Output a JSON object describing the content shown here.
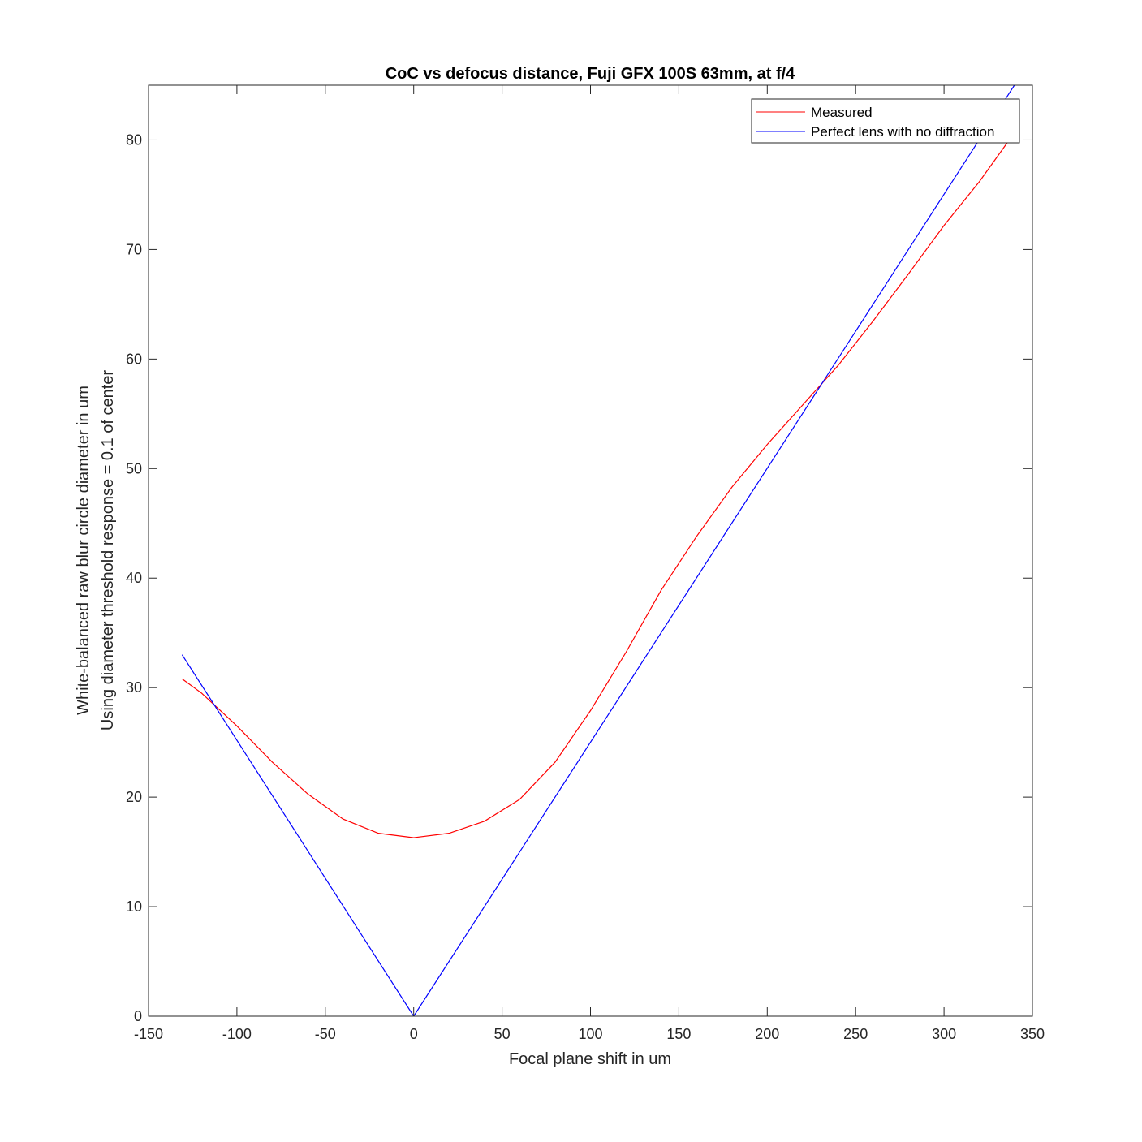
{
  "chart_data": {
    "type": "line",
    "title": "CoC vs defocus distance, Fuji GFX 100S 63mm, at f/4",
    "xlabel": "Focal plane shift in um",
    "ylabel": [
      "White-balanced raw blur circle diameter in um",
      "Using diameter threshold response = 0.1 of center"
    ],
    "xlim": [
      -150,
      350
    ],
    "ylim": [
      0,
      85
    ],
    "xticks": [
      -150,
      -100,
      -50,
      0,
      50,
      100,
      150,
      200,
      250,
      300,
      350
    ],
    "yticks": [
      0,
      10,
      20,
      30,
      40,
      50,
      60,
      70,
      80
    ],
    "grid": false,
    "legend": "top-right",
    "series": [
      {
        "name": "Measured",
        "color": "#ff0000",
        "x": [
          -131,
          -120,
          -100,
          -80,
          -60,
          -40,
          -20,
          0,
          20,
          40,
          60,
          80,
          100,
          120,
          140,
          160,
          180,
          200,
          220,
          240,
          260,
          280,
          300,
          320,
          340
        ],
        "y": [
          30.8,
          29.5,
          26.5,
          23.2,
          20.3,
          18.0,
          16.7,
          16.3,
          16.7,
          17.8,
          19.8,
          23.2,
          27.9,
          33.2,
          38.9,
          43.8,
          48.3,
          52.2,
          55.8,
          59.4,
          63.5,
          67.8,
          72.2,
          76.2,
          80.7
        ]
      },
      {
        "name": "Perfect lens with no diffraction",
        "color": "#0000ff",
        "x": [
          -131,
          0,
          341
        ],
        "y": [
          33.0,
          0,
          85.3
        ]
      }
    ]
  }
}
